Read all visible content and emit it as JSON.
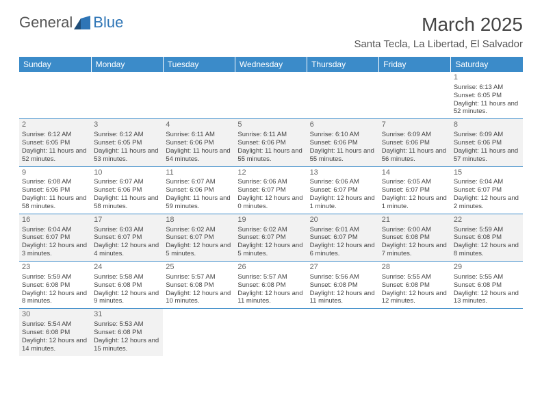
{
  "logo": {
    "text1": "General",
    "text2": "Blue"
  },
  "title": "March 2025",
  "location": "Santa Tecla, La Libertad, El Salvador",
  "weekdays": [
    "Sunday",
    "Monday",
    "Tuesday",
    "Wednesday",
    "Thursday",
    "Friday",
    "Saturday"
  ],
  "colors": {
    "header_bg": "#3b8bc9",
    "header_text": "#ffffff",
    "border": "#3b8bc9",
    "shaded_bg": "#f2f2f2",
    "text": "#444444",
    "logo_gray": "#555555",
    "logo_blue": "#2e75b6"
  },
  "typography": {
    "title_fontsize": 28,
    "location_fontsize": 15,
    "weekday_fontsize": 12,
    "cell_fontsize": 9.5,
    "daynum_fontsize": 11
  },
  "grid": {
    "rows": 6,
    "cols": 7,
    "first_day_col": 6,
    "days_in_month": 31
  },
  "days": {
    "1": {
      "sunrise": "6:13 AM",
      "sunset": "6:05 PM",
      "daylight": "11 hours and 52 minutes."
    },
    "2": {
      "sunrise": "6:12 AM",
      "sunset": "6:05 PM",
      "daylight": "11 hours and 52 minutes."
    },
    "3": {
      "sunrise": "6:12 AM",
      "sunset": "6:05 PM",
      "daylight": "11 hours and 53 minutes."
    },
    "4": {
      "sunrise": "6:11 AM",
      "sunset": "6:06 PM",
      "daylight": "11 hours and 54 minutes."
    },
    "5": {
      "sunrise": "6:11 AM",
      "sunset": "6:06 PM",
      "daylight": "11 hours and 55 minutes."
    },
    "6": {
      "sunrise": "6:10 AM",
      "sunset": "6:06 PM",
      "daylight": "11 hours and 55 minutes."
    },
    "7": {
      "sunrise": "6:09 AM",
      "sunset": "6:06 PM",
      "daylight": "11 hours and 56 minutes."
    },
    "8": {
      "sunrise": "6:09 AM",
      "sunset": "6:06 PM",
      "daylight": "11 hours and 57 minutes."
    },
    "9": {
      "sunrise": "6:08 AM",
      "sunset": "6:06 PM",
      "daylight": "11 hours and 58 minutes."
    },
    "10": {
      "sunrise": "6:07 AM",
      "sunset": "6:06 PM",
      "daylight": "11 hours and 58 minutes."
    },
    "11": {
      "sunrise": "6:07 AM",
      "sunset": "6:06 PM",
      "daylight": "11 hours and 59 minutes."
    },
    "12": {
      "sunrise": "6:06 AM",
      "sunset": "6:07 PM",
      "daylight": "12 hours and 0 minutes."
    },
    "13": {
      "sunrise": "6:06 AM",
      "sunset": "6:07 PM",
      "daylight": "12 hours and 1 minute."
    },
    "14": {
      "sunrise": "6:05 AM",
      "sunset": "6:07 PM",
      "daylight": "12 hours and 1 minute."
    },
    "15": {
      "sunrise": "6:04 AM",
      "sunset": "6:07 PM",
      "daylight": "12 hours and 2 minutes."
    },
    "16": {
      "sunrise": "6:04 AM",
      "sunset": "6:07 PM",
      "daylight": "12 hours and 3 minutes."
    },
    "17": {
      "sunrise": "6:03 AM",
      "sunset": "6:07 PM",
      "daylight": "12 hours and 4 minutes."
    },
    "18": {
      "sunrise": "6:02 AM",
      "sunset": "6:07 PM",
      "daylight": "12 hours and 5 minutes."
    },
    "19": {
      "sunrise": "6:02 AM",
      "sunset": "6:07 PM",
      "daylight": "12 hours and 5 minutes."
    },
    "20": {
      "sunrise": "6:01 AM",
      "sunset": "6:07 PM",
      "daylight": "12 hours and 6 minutes."
    },
    "21": {
      "sunrise": "6:00 AM",
      "sunset": "6:08 PM",
      "daylight": "12 hours and 7 minutes."
    },
    "22": {
      "sunrise": "5:59 AM",
      "sunset": "6:08 PM",
      "daylight": "12 hours and 8 minutes."
    },
    "23": {
      "sunrise": "5:59 AM",
      "sunset": "6:08 PM",
      "daylight": "12 hours and 8 minutes."
    },
    "24": {
      "sunrise": "5:58 AM",
      "sunset": "6:08 PM",
      "daylight": "12 hours and 9 minutes."
    },
    "25": {
      "sunrise": "5:57 AM",
      "sunset": "6:08 PM",
      "daylight": "12 hours and 10 minutes."
    },
    "26": {
      "sunrise": "5:57 AM",
      "sunset": "6:08 PM",
      "daylight": "12 hours and 11 minutes."
    },
    "27": {
      "sunrise": "5:56 AM",
      "sunset": "6:08 PM",
      "daylight": "12 hours and 11 minutes."
    },
    "28": {
      "sunrise": "5:55 AM",
      "sunset": "6:08 PM",
      "daylight": "12 hours and 12 minutes."
    },
    "29": {
      "sunrise": "5:55 AM",
      "sunset": "6:08 PM",
      "daylight": "12 hours and 13 minutes."
    },
    "30": {
      "sunrise": "5:54 AM",
      "sunset": "6:08 PM",
      "daylight": "12 hours and 14 minutes."
    },
    "31": {
      "sunrise": "5:53 AM",
      "sunset": "6:08 PM",
      "daylight": "12 hours and 15 minutes."
    }
  },
  "labels": {
    "sunrise_prefix": "Sunrise: ",
    "sunset_prefix": "Sunset: ",
    "daylight_prefix": "Daylight: "
  }
}
